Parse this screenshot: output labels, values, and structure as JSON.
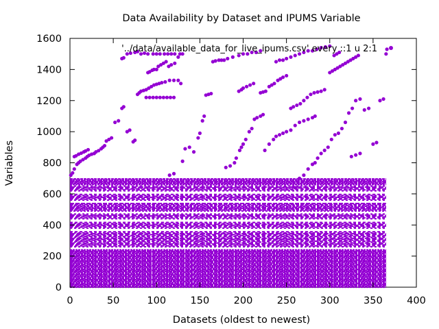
{
  "chart_data": {
    "type": "scatter",
    "title": "Data Availability by Dataset and IPUMS Variable",
    "xlabel": "Datasets (oldest to newest)",
    "ylabel": "Variables",
    "xlim": [
      0,
      400
    ],
    "ylim": [
      0,
      1600
    ],
    "xticks": [
      0,
      50,
      100,
      150,
      200,
      250,
      300,
      350,
      400
    ],
    "yticks": [
      0,
      200,
      400,
      600,
      800,
      1000,
      1200,
      1400,
      1600
    ],
    "grid": false,
    "legend_position": "top-right",
    "series": [
      {
        "name": "'../data/available_data_for_live_ipums.csv' every ::1 u 2:1",
        "color": "#9400d3",
        "marker": "filled-circle",
        "points": [
          [
            1,
            720
          ],
          [
            3,
            735
          ],
          [
            5,
            760
          ],
          [
            8,
            790
          ],
          [
            10,
            800
          ],
          [
            12,
            810
          ],
          [
            15,
            820
          ],
          [
            18,
            830
          ],
          [
            20,
            840
          ],
          [
            22,
            848
          ],
          [
            25,
            855
          ],
          [
            28,
            860
          ],
          [
            30,
            870
          ],
          [
            33,
            878
          ],
          [
            36,
            890
          ],
          [
            38,
            900
          ],
          [
            40,
            910
          ],
          [
            5,
            840
          ],
          [
            7,
            845
          ],
          [
            10,
            855
          ],
          [
            13,
            862
          ],
          [
            16,
            870
          ],
          [
            18,
            876
          ],
          [
            21,
            884
          ],
          [
            42,
            940
          ],
          [
            45,
            950
          ],
          [
            48,
            960
          ],
          [
            52,
            1060
          ],
          [
            56,
            1070
          ],
          [
            60,
            1150
          ],
          [
            62,
            1160
          ],
          [
            66,
            1000
          ],
          [
            69,
            1010
          ],
          [
            73,
            935
          ],
          [
            75,
            945
          ],
          [
            78,
            1240
          ],
          [
            80,
            1250
          ],
          [
            82,
            1260
          ],
          [
            85,
            1265
          ],
          [
            88,
            1270
          ],
          [
            91,
            1280
          ],
          [
            94,
            1290
          ],
          [
            97,
            1300
          ],
          [
            100,
            1305
          ],
          [
            103,
            1310
          ],
          [
            106,
            1315
          ],
          [
            110,
            1320
          ],
          [
            115,
            1330
          ],
          [
            120,
            1330
          ],
          [
            125,
            1330
          ],
          [
            128,
            1310
          ],
          [
            88,
            1220
          ],
          [
            92,
            1220
          ],
          [
            96,
            1220
          ],
          [
            100,
            1220
          ],
          [
            104,
            1220
          ],
          [
            108,
            1220
          ],
          [
            112,
            1220
          ],
          [
            116,
            1220
          ],
          [
            120,
            1220
          ],
          [
            90,
            1380
          ],
          [
            92,
            1385
          ],
          [
            95,
            1395
          ],
          [
            97,
            1400
          ],
          [
            100,
            1400
          ],
          [
            102,
            1420
          ],
          [
            105,
            1430
          ],
          [
            108,
            1440
          ],
          [
            111,
            1450
          ],
          [
            114,
            1420
          ],
          [
            117,
            1430
          ],
          [
            121,
            1440
          ],
          [
            125,
            1480
          ],
          [
            130,
            1500
          ],
          [
            60,
            1470
          ],
          [
            62,
            1475
          ],
          [
            66,
            1500
          ],
          [
            70,
            1505
          ],
          [
            75,
            1510
          ],
          [
            78,
            1515
          ],
          [
            82,
            1500
          ],
          [
            86,
            1505
          ],
          [
            90,
            1500
          ],
          [
            96,
            1500
          ],
          [
            100,
            1500
          ],
          [
            104,
            1500
          ],
          [
            109,
            1500
          ],
          [
            113,
            1500
          ],
          [
            117,
            1500
          ],
          [
            121,
            1500
          ],
          [
            127,
            1500
          ],
          [
            115,
            720
          ],
          [
            120,
            730
          ],
          [
            130,
            810
          ],
          [
            133,
            890
          ],
          [
            138,
            900
          ],
          [
            143,
            870
          ],
          [
            148,
            960
          ],
          [
            150,
            990
          ],
          [
            153,
            1070
          ],
          [
            155,
            1100
          ],
          [
            157,
            1235
          ],
          [
            160,
            1240
          ],
          [
            163,
            1245
          ],
          [
            165,
            1450
          ],
          [
            168,
            1455
          ],
          [
            172,
            1460
          ],
          [
            175,
            1460
          ],
          [
            178,
            1460
          ],
          [
            182,
            1470
          ],
          [
            188,
            1480
          ],
          [
            195,
            1490
          ],
          [
            200,
            1500
          ],
          [
            205,
            1500
          ],
          [
            210,
            1510
          ],
          [
            215,
            1510
          ],
          [
            220,
            1520
          ],
          [
            180,
            770
          ],
          [
            185,
            780
          ],
          [
            190,
            800
          ],
          [
            192,
            830
          ],
          [
            196,
            880
          ],
          [
            198,
            900
          ],
          [
            200,
            920
          ],
          [
            203,
            950
          ],
          [
            207,
            1000
          ],
          [
            210,
            1020
          ],
          [
            213,
            1080
          ],
          [
            216,
            1090
          ],
          [
            220,
            1100
          ],
          [
            223,
            1110
          ],
          [
            220,
            1250
          ],
          [
            223,
            1255
          ],
          [
            226,
            1260
          ],
          [
            230,
            1290
          ],
          [
            233,
            1300
          ],
          [
            236,
            1310
          ],
          [
            240,
            1330
          ],
          [
            243,
            1340
          ],
          [
            246,
            1350
          ],
          [
            250,
            1360
          ],
          [
            195,
            1260
          ],
          [
            198,
            1270
          ],
          [
            200,
            1280
          ],
          [
            204,
            1290
          ],
          [
            208,
            1300
          ],
          [
            212,
            1310
          ],
          [
            225,
            880
          ],
          [
            230,
            920
          ],
          [
            235,
            950
          ],
          [
            238,
            970
          ],
          [
            242,
            980
          ],
          [
            246,
            990
          ],
          [
            250,
            1000
          ],
          [
            255,
            1010
          ],
          [
            260,
            1040
          ],
          [
            265,
            1060
          ],
          [
            270,
            1070
          ],
          [
            275,
            1080
          ],
          [
            280,
            1090
          ],
          [
            283,
            1100
          ],
          [
            238,
            1450
          ],
          [
            242,
            1460
          ],
          [
            246,
            1460
          ],
          [
            250,
            1470
          ],
          [
            255,
            1480
          ],
          [
            260,
            1490
          ],
          [
            265,
            1500
          ],
          [
            270,
            1510
          ],
          [
            275,
            1520
          ],
          [
            280,
            1520
          ],
          [
            285,
            1530
          ],
          [
            290,
            1540
          ],
          [
            295,
            1545
          ],
          [
            300,
            1550
          ],
          [
            255,
            1150
          ],
          [
            258,
            1160
          ],
          [
            262,
            1170
          ],
          [
            266,
            1180
          ],
          [
            270,
            1200
          ],
          [
            274,
            1220
          ],
          [
            278,
            1240
          ],
          [
            282,
            1250
          ],
          [
            286,
            1255
          ],
          [
            290,
            1260
          ],
          [
            294,
            1270
          ],
          [
            260,
            640
          ],
          [
            265,
            700
          ],
          [
            270,
            720
          ],
          [
            275,
            760
          ],
          [
            280,
            790
          ],
          [
            283,
            800
          ],
          [
            286,
            830
          ],
          [
            290,
            860
          ],
          [
            294,
            880
          ],
          [
            298,
            900
          ],
          [
            302,
            950
          ],
          [
            306,
            980
          ],
          [
            310,
            990
          ],
          [
            314,
            1020
          ],
          [
            318,
            1060
          ],
          [
            322,
            1120
          ],
          [
            326,
            1150
          ],
          [
            300,
            1380
          ],
          [
            303,
            1390
          ],
          [
            306,
            1400
          ],
          [
            309,
            1410
          ],
          [
            312,
            1420
          ],
          [
            315,
            1430
          ],
          [
            318,
            1440
          ],
          [
            321,
            1450
          ],
          [
            324,
            1460
          ],
          [
            327,
            1470
          ],
          [
            330,
            1480
          ],
          [
            333,
            1490
          ],
          [
            330,
            1200
          ],
          [
            335,
            1210
          ],
          [
            340,
            1140
          ],
          [
            345,
            1150
          ],
          [
            350,
            920
          ],
          [
            354,
            930
          ],
          [
            358,
            1200
          ],
          [
            362,
            1210
          ],
          [
            365,
            1500
          ],
          [
            366,
            1530
          ],
          [
            305,
            1490
          ],
          [
            308,
            1500
          ],
          [
            311,
            1510
          ],
          [
            325,
            840
          ],
          [
            330,
            850
          ],
          [
            335,
            860
          ]
        ],
        "bands": [
          {
            "y": [
              0,
              240
            ],
            "x": [
              0,
              365
            ]
          },
          {
            "y": [
              260,
              360
            ],
            "x": [
              0,
              365
            ]
          },
          {
            "y": [
              380,
              420
            ],
            "x": [
              0,
              365
            ]
          },
          {
            "y": [
              440,
              470
            ],
            "x": [
              0,
              365
            ]
          },
          {
            "y": [
              490,
              540
            ],
            "x": [
              0,
              365
            ]
          },
          {
            "y": [
              560,
              600
            ],
            "x": [
              0,
              365
            ]
          },
          {
            "y": [
              620,
              650
            ],
            "x": [
              0,
              365
            ]
          },
          {
            "y": [
              660,
              700
            ],
            "x": [
              0,
              365
            ]
          }
        ]
      }
    ]
  }
}
